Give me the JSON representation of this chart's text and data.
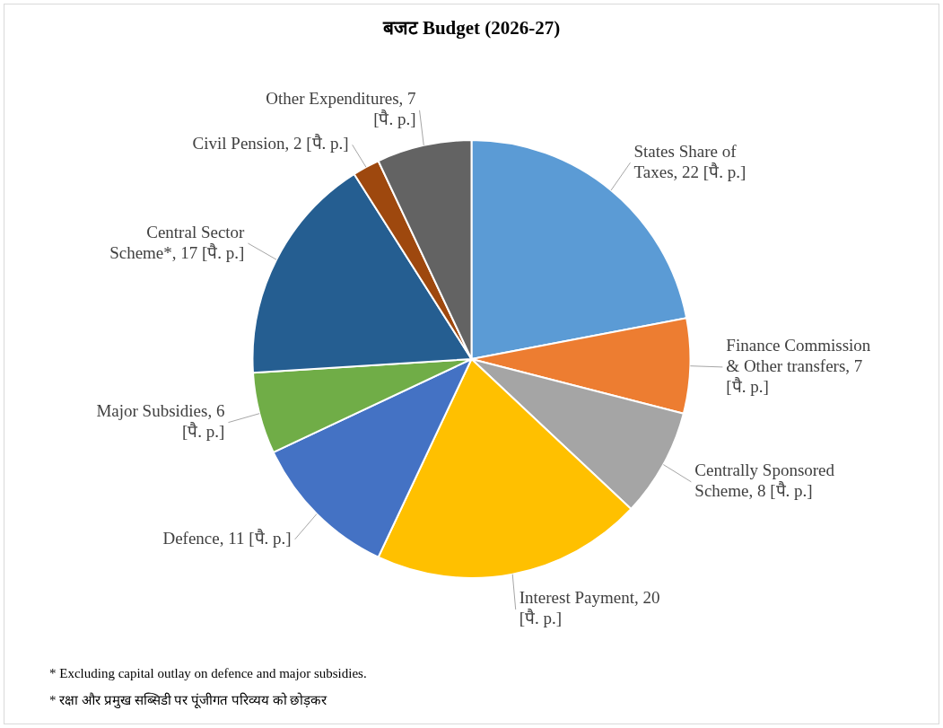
{
  "chart_data": {
    "type": "pie",
    "title": "बजट  Budget (2026-27)",
    "categories": [
      "States Share of Taxes",
      "Finance Commission & Other transfers",
      "Centrally Sponsored Scheme",
      "Interest Payment",
      "Defence",
      "Major Subsidies",
      "Central Sector Scheme*",
      "Civil Pension",
      "Other Expenditures"
    ],
    "values": [
      22,
      7,
      8,
      20,
      11,
      6,
      17,
      2,
      7
    ],
    "colors": [
      "#5b9bd5",
      "#ed7d31",
      "#a5a5a5",
      "#ffc000",
      "#4472c4",
      "#70ad47",
      "#255e91",
      "#9e480e",
      "#636363"
    ],
    "value_labels": [
      "22 [पै. p.]",
      "7 [पै. p.]",
      "8 [पै. p.]",
      "20 [पै. p.]",
      "11 [पै. p.]",
      "6 [पै. p.]",
      "17 [पै. p.]",
      "2 [पै. p.]",
      "7 [पै. p.]"
    ],
    "annotations": [
      "* Excluding capital outlay on defence and major subsidies.",
      "* रक्षा और प्रमुख सब्सिडी पर पूंजीगत परिव्यय को छोड़कर"
    ]
  }
}
